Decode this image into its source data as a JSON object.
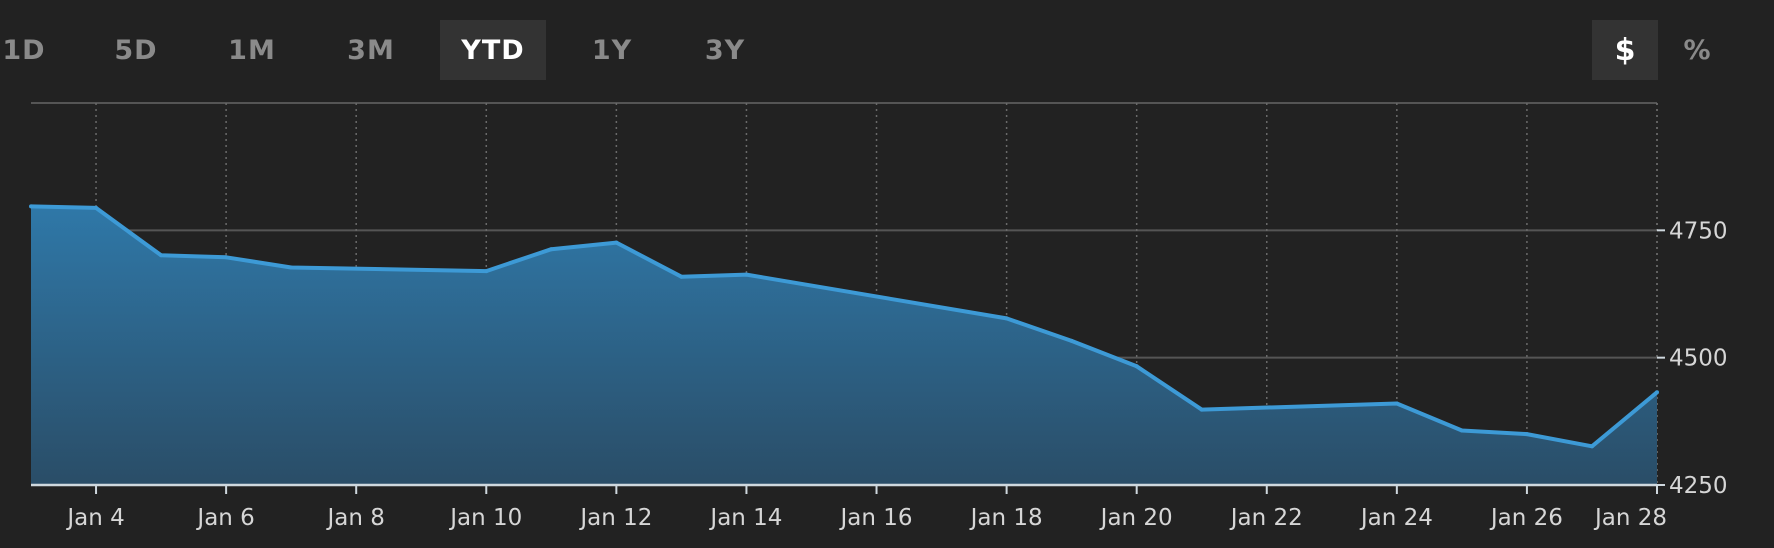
{
  "range_buttons": [
    {
      "label": "1D",
      "active": false
    },
    {
      "label": "5D",
      "active": false
    },
    {
      "label": "1M",
      "active": false
    },
    {
      "label": "3M",
      "active": false
    },
    {
      "label": "YTD",
      "active": true
    },
    {
      "label": "1Y",
      "active": false
    },
    {
      "label": "3Y",
      "active": false
    }
  ],
  "unit_buttons": [
    {
      "label": "$",
      "active": true
    },
    {
      "label": "%",
      "active": false
    }
  ],
  "colors": {
    "background": "#222222",
    "line": "#3d9ad6",
    "fill_top": "#2f78a8",
    "fill_bottom": "#2a4d67",
    "grid": "#555555"
  },
  "chart_data": {
    "type": "area",
    "x_start": "Jan 3",
    "x_end": "Jan 28",
    "x_tick_labels": [
      "Jan 4",
      "Jan 6",
      "Jan 8",
      "Jan 10",
      "Jan 12",
      "Jan 14",
      "Jan 16",
      "Jan 18",
      "Jan 20",
      "Jan 22",
      "Jan 24",
      "Jan 26",
      "Jan 28"
    ],
    "y_ticks": [
      4250,
      4500,
      4750
    ],
    "ylim": [
      4250,
      5000
    ],
    "grid": true,
    "y_axis_side": "right",
    "series": [
      {
        "x": [
          "Jan 3",
          "Jan 4",
          "Jan 5",
          "Jan 6",
          "Jan 7",
          "Jan 10",
          "Jan 11",
          "Jan 12",
          "Jan 13",
          "Jan 14",
          "Jan 18",
          "Jan 19",
          "Jan 20",
          "Jan 21",
          "Jan 24",
          "Jan 25",
          "Jan 26",
          "Jan 27",
          "Jan 28"
        ],
        "y": [
          4797,
          4794,
          4701,
          4697,
          4677,
          4670,
          4713,
          4726,
          4659,
          4663,
          4577,
          4533,
          4483,
          4398,
          4410,
          4357,
          4350,
          4326,
          4432
        ]
      }
    ]
  }
}
